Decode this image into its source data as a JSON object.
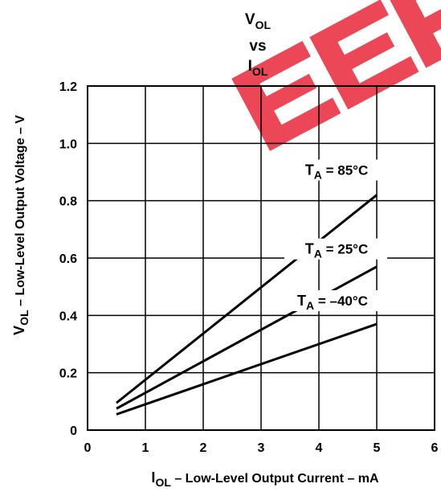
{
  "chart_data": {
    "type": "line",
    "title": {
      "line1": {
        "main": "V",
        "sub": "OL"
      },
      "line2": "vs",
      "line3": {
        "main": "I",
        "sub": "OL"
      }
    },
    "xlabel": {
      "main": "I",
      "sub": "OL",
      "rest": " – Low-Level Output Current – mA"
    },
    "ylabel": {
      "main": "V",
      "sub": "OL",
      "rest": " – Low-Level Output Voltage – V"
    },
    "xlim": [
      0,
      6
    ],
    "ylim": [
      0,
      1.2
    ],
    "x_ticks": [
      "0",
      "1",
      "2",
      "3",
      "4",
      "5",
      "6"
    ],
    "y_ticks": [
      "0",
      "0.2",
      "0.4",
      "0.6",
      "0.8",
      "1.0",
      "1.2"
    ],
    "grid": true,
    "series": [
      {
        "name": "TA = 85°C",
        "label": {
          "main": "T",
          "sub": "A",
          "rest": " = 85°C"
        },
        "x": [
          0.5,
          5
        ],
        "y": [
          0.095,
          0.82
        ]
      },
      {
        "name": "TA = 25°C",
        "label": {
          "main": "T",
          "sub": "A",
          "rest": " = 25°C"
        },
        "x": [
          0.5,
          5
        ],
        "y": [
          0.075,
          0.57
        ]
      },
      {
        "name": "TA = –40°C",
        "label": {
          "main": "T",
          "sub": "A",
          "rest": " = –40°C"
        },
        "x": [
          0.5,
          5
        ],
        "y": [
          0.055,
          0.37
        ]
      }
    ],
    "watermark_text": "EEP",
    "watermark_color": "#e8283a",
    "line_color": "#000000"
  }
}
